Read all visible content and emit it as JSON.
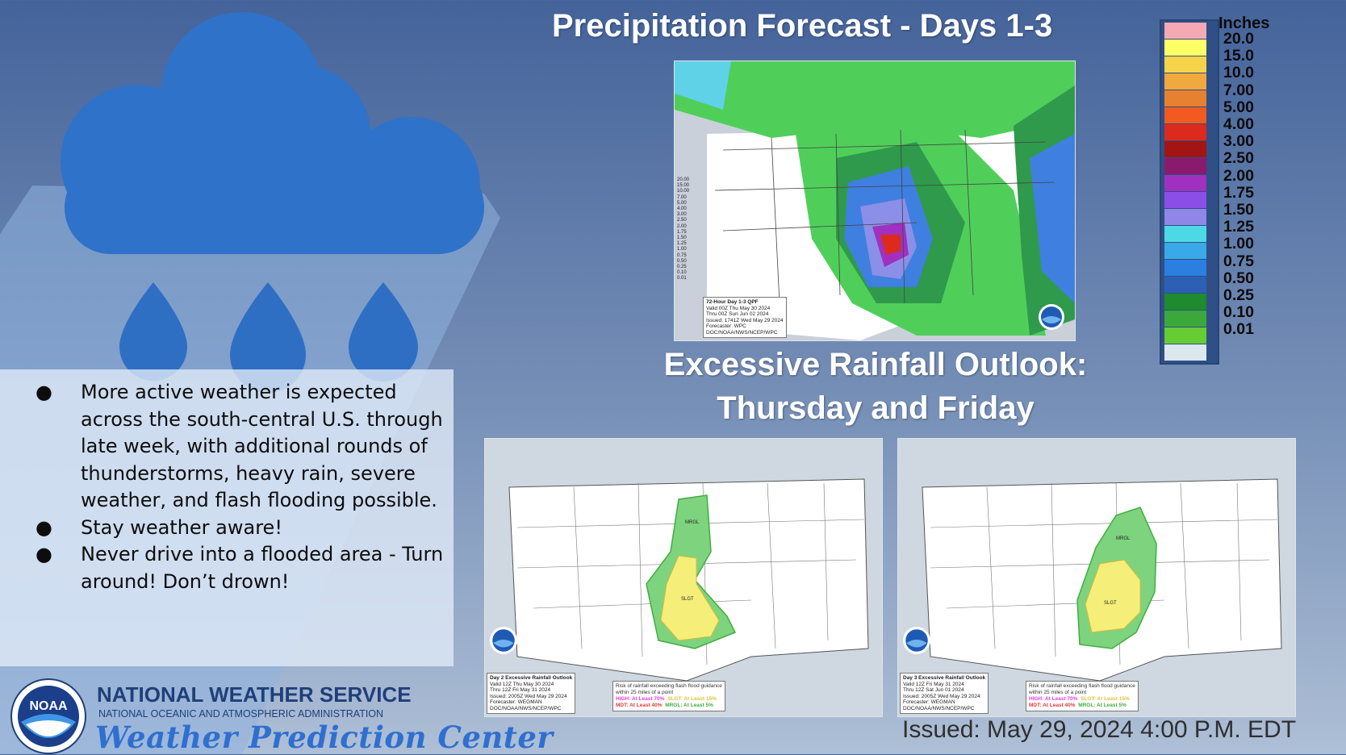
{
  "header": {
    "title": "Precipitation Forecast - Days 1-3"
  },
  "precip_scale": {
    "unit": "Inches",
    "labels": [
      "20.0",
      "15.0",
      "10.0",
      "7.00",
      "5.00",
      "4.00",
      "3.00",
      "2.50",
      "2.00",
      "1.75",
      "1.50",
      "1.25",
      "1.00",
      "0.75",
      "0.50",
      "0.25",
      "0.10",
      "0.01"
    ],
    "colors": [
      "#f4a9b4",
      "#ffff66",
      "#f7d34a",
      "#f0a93e",
      "#e6812f",
      "#f25a22",
      "#dc2a1c",
      "#a31414",
      "#8a1a6e",
      "#a030c0",
      "#8b4fe8",
      "#8f86e8",
      "#4dd8e6",
      "#3aa9e8",
      "#2a7fe0",
      "#2d5fb5",
      "#1f8a2e",
      "#3aa83a",
      "#66cc33",
      "#dbe8ee"
    ]
  },
  "qpf_map": {
    "legend_values": [
      "20.00",
      "15.00",
      "10.00",
      "7.00",
      "5.00",
      "4.00",
      "3.00",
      "2.50",
      "2.00",
      "1.75",
      "1.50",
      "1.25",
      "1.00",
      "0.75",
      "0.50",
      "0.25",
      "0.10",
      "0.01"
    ],
    "caption_lines": [
      "72-Hour Day 1-3 QPF",
      "Valid 00Z Thu May 30 2024",
      "Thru 00Z Sun Jun 02 2024",
      "Issued: 1741Z Wed May 29 2024",
      "Forecaster: WPC",
      "DOC/NOAA/NWS/NCEP/WPC"
    ]
  },
  "ero": {
    "title_line1": "Excessive Rainfall Outlook:",
    "title_line2": "Thursday  and Friday",
    "day2": {
      "caption_lines": [
        "Day 2 Excessive Rainfall Outlook",
        "Valid 12Z Thu May 30 2024",
        "Thru 12Z Fri May 31 2024",
        "Issued: 2005Z Wed May 29 2024",
        "Forecaster: WEGMAN",
        "DOC/NOAA/NWS/NCEP/WPC"
      ],
      "zone_labels": [
        "MRGL",
        "SLGT"
      ]
    },
    "day3": {
      "caption_lines": [
        "Day 3 Excessive Rainfall Outlook",
        "Valid 12Z Fri May 31 2024",
        "Thru 12Z Sat Jun 01 2024",
        "Issued: 2005Z Wed May 29 2024",
        "Forecaster: WEGMAN",
        "DOC/NOAA/NWS/NCEP/WPC"
      ],
      "zone_labels": [
        "MRGL",
        "SLGT"
      ]
    },
    "risk_legend": {
      "line1": "Risk of rainfall exceeding flash flood guidance",
      "line2": "within 25 miles of a point",
      "high": "HIGH: At Least 70%",
      "slgt": "SLGT: At Least 15%",
      "mdt": "MDT: At Least 40%",
      "mrgl": "MRGL: At Least 5%",
      "colors": {
        "high": "#e53fe0",
        "slgt": "#e0c23a",
        "mdt": "#e03a3a",
        "mrgl": "#3fae3f"
      }
    }
  },
  "bullets": [
    "More active weather is expected across the south-central U.S. through late week, with additional rounds of thunderstorms, heavy rain, severe weather, and flash flooding possible.",
    "Stay weather aware!",
    "Never drive into a flooded area - Turn around!  Don’t drown!"
  ],
  "footer": {
    "agency": "NATIONAL WEATHER SERVICE",
    "parent": "NATIONAL OCEANIC AND ATMOSPHERIC ADMINISTRATION",
    "center": "Weather Prediction Center",
    "logo_text": "NOAA",
    "issued": "Issued: May 29, 2024  4:00 P.M. EDT"
  },
  "icons": [
    "rain-cloud-icon",
    "raindrop-icon",
    "noaa-logo-icon"
  ],
  "colors": {
    "accent": "#2f6fd0",
    "cloud": "#2f72c9",
    "nws_blue": "#1f3f78"
  }
}
